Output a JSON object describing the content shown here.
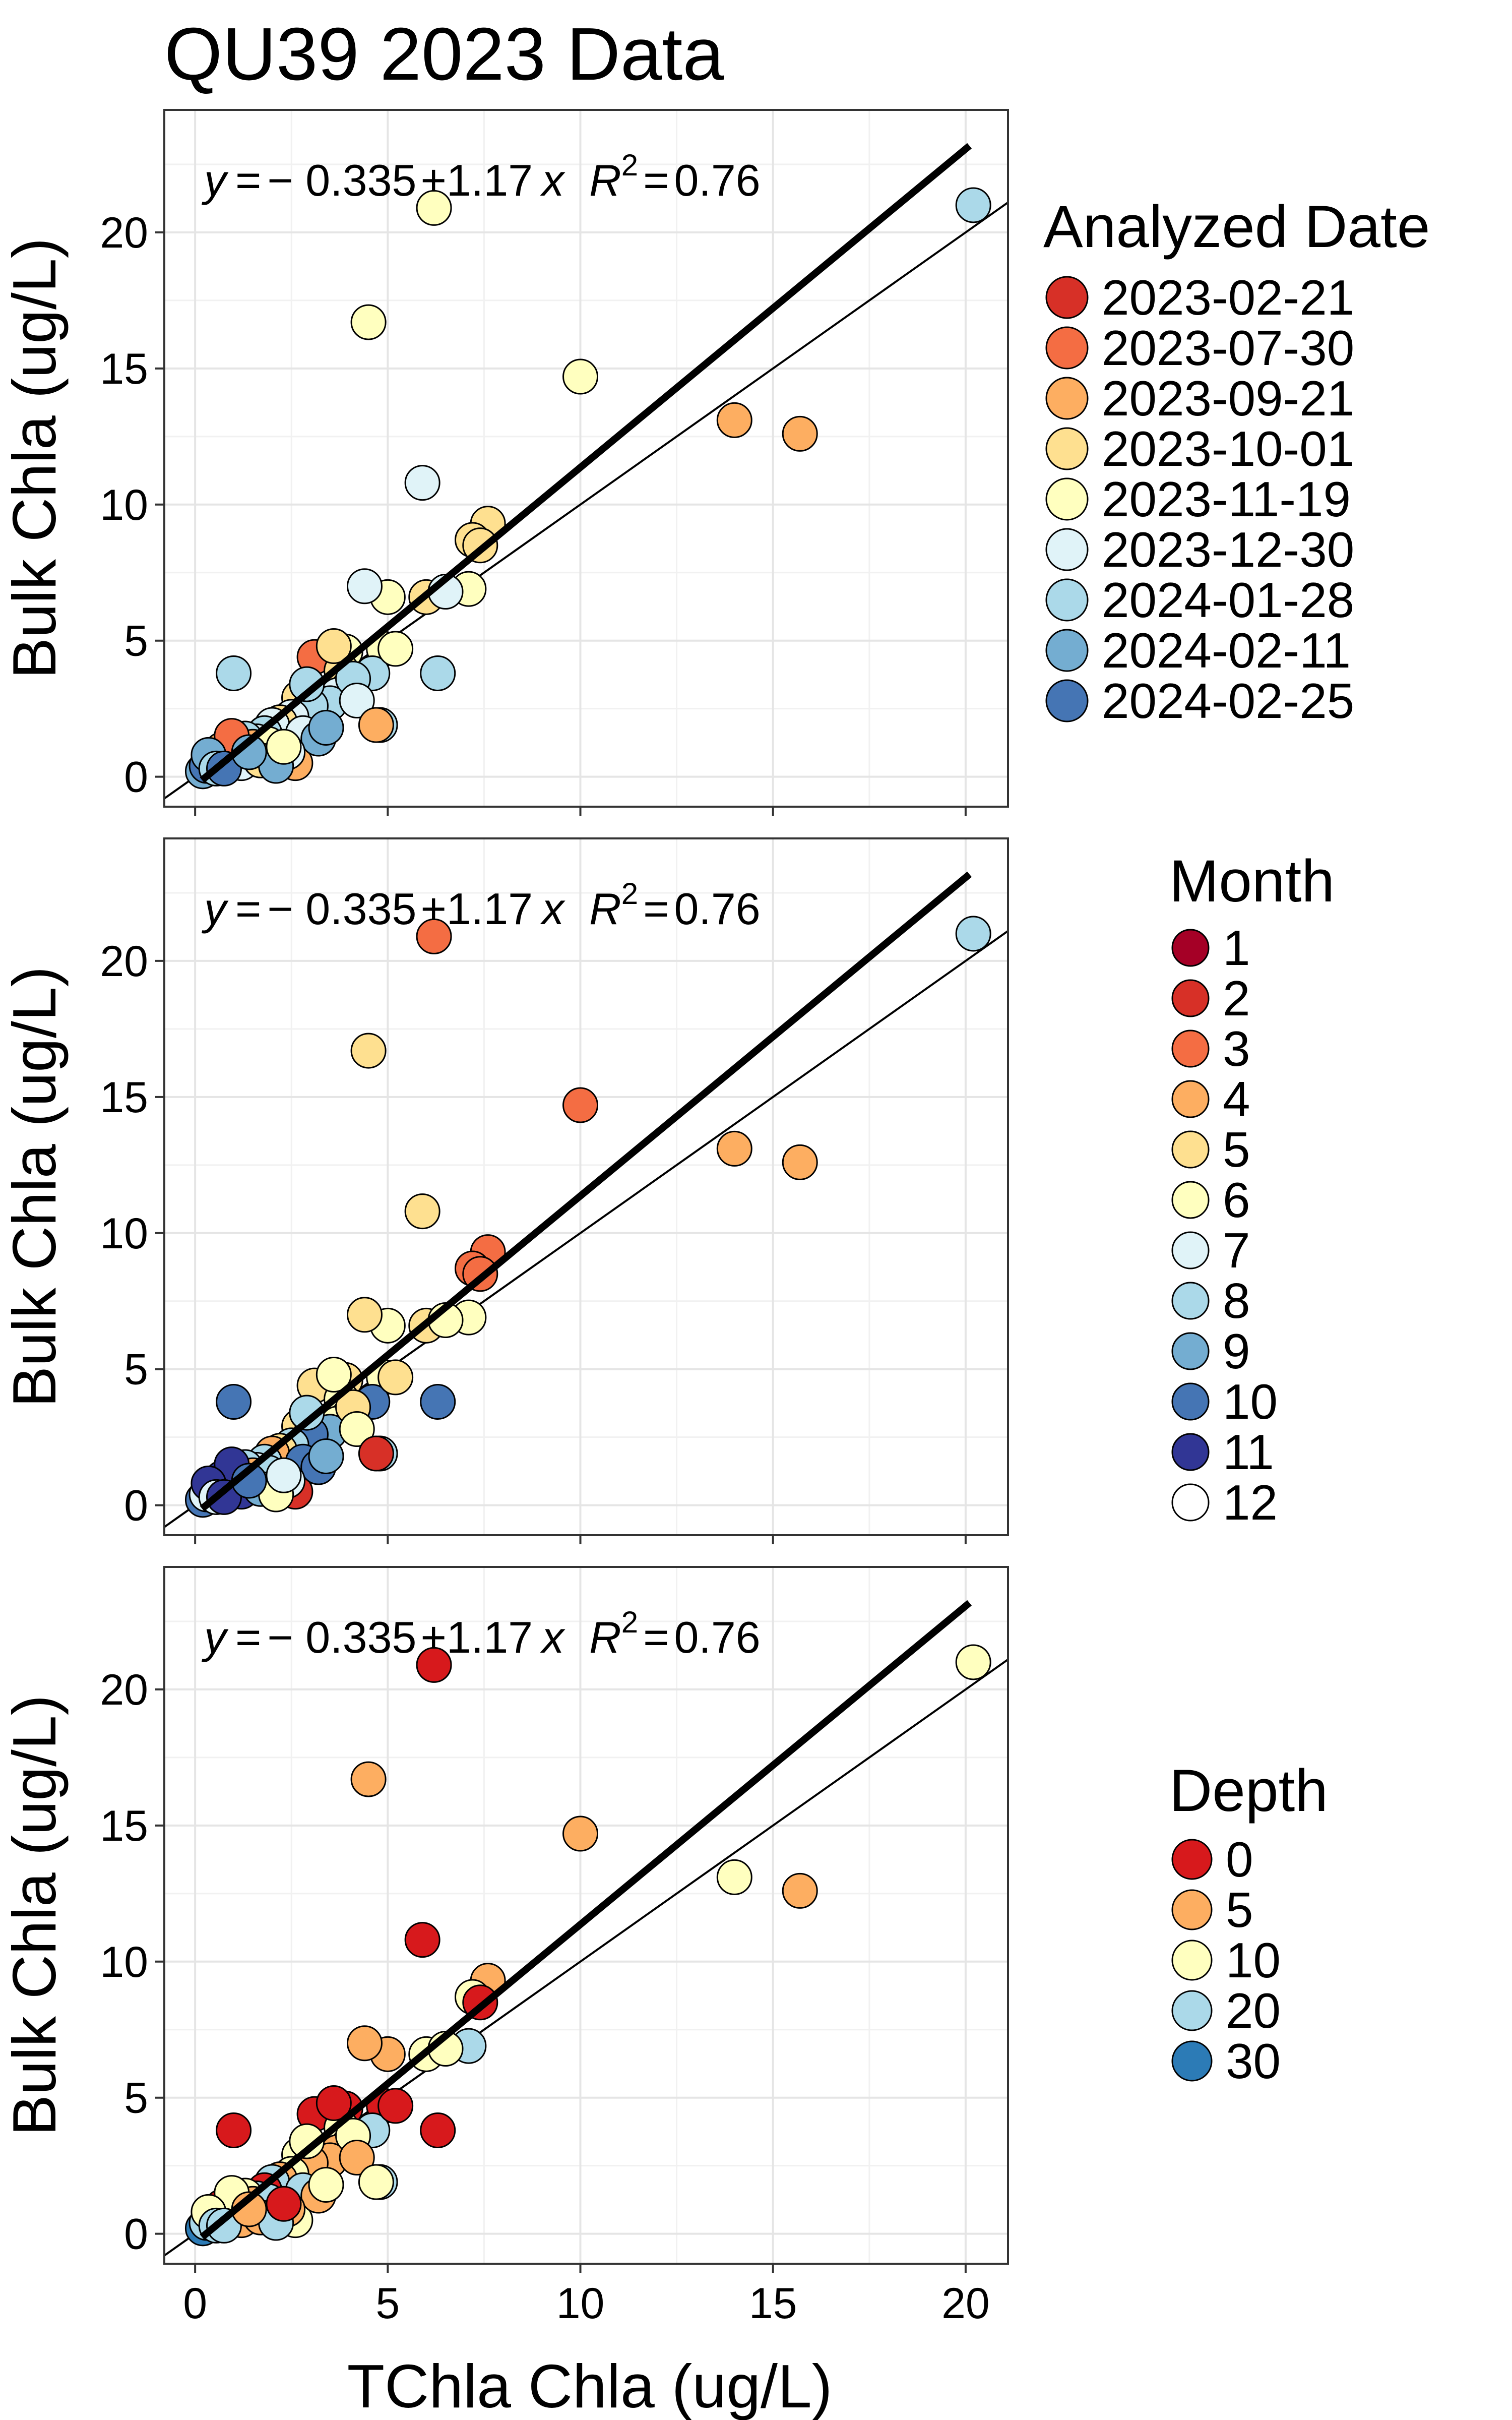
{
  "title": "QU39 2023 Data",
  "x_axis_label": "TChla Chla (ug/L)",
  "y_axis_label": "Bulk Chla (ug/L)",
  "equation": {
    "y": "y",
    "eq": "=",
    "intercept": "− 0.335",
    "plus": "+",
    "slope": "1.17",
    "x": "x",
    "r": "R",
    "exp": "2",
    "r_eq": "=",
    "r2": "0.76"
  },
  "panels": [
    {
      "legend_title": "Analyzed Date",
      "legend": [
        {
          "label": "2023-02-21",
          "color": "#d73027"
        },
        {
          "label": "2023-07-30",
          "color": "#f46d43"
        },
        {
          "label": "2023-09-21",
          "color": "#fdae61"
        },
        {
          "label": "2023-10-01",
          "color": "#fee090"
        },
        {
          "label": "2023-11-19",
          "color": "#ffffbf"
        },
        {
          "label": "2023-12-30",
          "color": "#e0f3f8"
        },
        {
          "label": "2024-01-28",
          "color": "#abd9e9"
        },
        {
          "label": "2024-02-11",
          "color": "#74add1"
        },
        {
          "label": "2024-02-25",
          "color": "#4575b4"
        }
      ]
    },
    {
      "legend_title": "Month",
      "legend": [
        {
          "label": "1",
          "color": "#a50026"
        },
        {
          "label": "2",
          "color": "#d73027"
        },
        {
          "label": "3",
          "color": "#f46d43"
        },
        {
          "label": "4",
          "color": "#fdae61"
        },
        {
          "label": "5",
          "color": "#fee090"
        },
        {
          "label": "6",
          "color": "#ffffbf"
        },
        {
          "label": "7",
          "color": "#e0f3f8"
        },
        {
          "label": "8",
          "color": "#abd9e9"
        },
        {
          "label": "9",
          "color": "#74add1"
        },
        {
          "label": "10",
          "color": "#4575b4"
        },
        {
          "label": "11",
          "color": "#313695"
        },
        {
          "label": "12",
          "color": "#ffffff"
        }
      ]
    },
    {
      "legend_title": "Depth",
      "legend": [
        {
          "label": "0",
          "color": "#d7191c"
        },
        {
          "label": "5",
          "color": "#fdae61"
        },
        {
          "label": "10",
          "color": "#ffffbf"
        },
        {
          "label": "20",
          "color": "#abd9e9"
        },
        {
          "label": "30",
          "color": "#2c7bb6"
        }
      ]
    }
  ],
  "chart_data": {
    "type": "scatter",
    "title": "QU39 2023 Data",
    "xlabel": "TChla Chla (ug/L)",
    "ylabel": "Bulk Chla (ug/L)",
    "xlim": [
      -0.8,
      21.1
    ],
    "ylim": [
      -1.1,
      24.5
    ],
    "x_ticks": [
      0,
      5,
      10,
      15,
      20
    ],
    "y_ticks": [
      0,
      5,
      10,
      15,
      20
    ],
    "grid": true,
    "fit_line": {
      "intercept": -0.335,
      "slope": 1.17,
      "r2": 0.76
    },
    "identity_line": {
      "intercept": 0,
      "slope": 1
    },
    "points": {
      "x": [
        20.2,
        6.2,
        4.5,
        10.0,
        14.0,
        15.7,
        5.9,
        7.6,
        7.2,
        7.1,
        6.0,
        5.0,
        4.4,
        4.9,
        3.9,
        3.1,
        4.6,
        3.8,
        6.3,
        4.8,
        4.0,
        3.7,
        3.5,
        2.7,
        3.0,
        2.5,
        2.2,
        2.0,
        1.8,
        1.6,
        1.3,
        1.5,
        1.0,
        0.9,
        0.8,
        0.6,
        0.5,
        0.4,
        0.2,
        0.3,
        0.7,
        1.1,
        1.2,
        1.9,
        2.6,
        2.8,
        3.2,
        3.4,
        2.4,
        0.95,
        1.7,
        2.1,
        2.3,
        3.6,
        4.1,
        4.2,
        4.7,
        5.2,
        6.5,
        7.4,
        0.35,
        0.55,
        0.75,
        1.4,
        2.9
      ],
      "y": [
        21.0,
        20.9,
        16.7,
        14.7,
        13.1,
        12.6,
        10.8,
        9.3,
        8.7,
        6.9,
        6.6,
        6.6,
        7.0,
        4.7,
        4.6,
        4.4,
        3.8,
        3.9,
        3.8,
        1.9,
        3.3,
        3.0,
        2.7,
        2.9,
        2.6,
        2.2,
        2.0,
        1.9,
        1.6,
        1.3,
        1.4,
        1.1,
        3.8,
        0.9,
        0.7,
        0.6,
        0.5,
        0.6,
        0.2,
        0.4,
        1.0,
        0.8,
        0.5,
        1.2,
        0.5,
        1.6,
        1.4,
        1.8,
        0.9,
        1.5,
        0.6,
        0.4,
        1.1,
        4.8,
        3.6,
        2.8,
        1.9,
        4.7,
        6.8,
        8.5,
        0.8,
        0.3,
        0.3,
        0.9,
        3.4
      ],
      "date_group": [
        6,
        4,
        4,
        4,
        2,
        2,
        5,
        3,
        3,
        4,
        3,
        4,
        5,
        4,
        4,
        1,
        6,
        3,
        6,
        6,
        4,
        5,
        6,
        3,
        6,
        5,
        3,
        5,
        6,
        5,
        6,
        2,
        6,
        5,
        3,
        2,
        7,
        6,
        7,
        8,
        2,
        6,
        5,
        4,
        2,
        5,
        7,
        7,
        5,
        1,
        3,
        7,
        4,
        3,
        6,
        5,
        2,
        4,
        5,
        3,
        7,
        6,
        8,
        7,
        6
      ],
      "month": [
        8,
        3,
        5,
        3,
        4,
        4,
        5,
        3,
        3,
        6,
        5,
        6,
        5,
        6,
        5,
        5,
        10,
        6,
        10,
        8,
        8,
        6,
        9,
        5,
        10,
        8,
        5,
        4,
        8,
        7,
        8,
        4,
        10,
        11,
        11,
        10,
        11,
        11,
        10,
        7,
        11,
        11,
        11,
        8,
        2,
        10,
        10,
        9,
        7,
        11,
        9,
        6,
        7,
        6,
        5,
        6,
        2,
        5,
        6,
        3,
        11,
        7,
        11,
        10,
        8
      ],
      "depth": [
        10,
        0,
        5,
        5,
        10,
        5,
        0,
        5,
        10,
        20,
        10,
        5,
        5,
        0,
        0,
        0,
        20,
        10,
        0,
        20,
        0,
        5,
        5,
        10,
        5,
        10,
        5,
        20,
        0,
        20,
        10,
        5,
        0,
        0,
        10,
        5,
        10,
        20,
        30,
        20,
        0,
        10,
        5,
        20,
        10,
        20,
        5,
        10,
        5,
        10,
        5,
        20,
        0,
        0,
        10,
        5,
        10,
        0,
        10,
        0,
        10,
        20,
        20,
        5,
        10
      ],
      "color_by_panel": [
        "date_group",
        "month",
        "depth"
      ]
    }
  }
}
